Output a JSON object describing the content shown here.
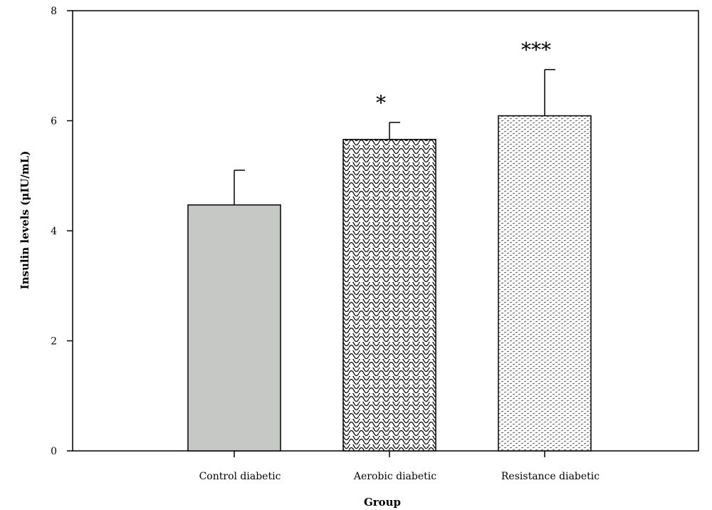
{
  "chart_data": {
    "type": "bar",
    "title": "",
    "xlabel": "Group",
    "ylabel": "Insulin levels (μIU/mL)",
    "ylim": [
      0,
      8
    ],
    "yticks": [
      "0",
      "2",
      "4",
      "6",
      "8"
    ],
    "grid": false,
    "categories": [
      "Control diabetic",
      "Aerobic diabetic",
      "Resistance diabetic"
    ],
    "values": [
      4.47,
      5.66,
      6.09
    ],
    "error_upper": [
      0.63,
      0.31,
      0.84
    ],
    "significance": [
      "",
      "*",
      "***"
    ],
    "bar_fills": [
      "solid-gray",
      "wave-pattern",
      "dot-pattern"
    ],
    "colors": {
      "control_fill": "#c5c8c4",
      "axis": "#000000"
    }
  }
}
